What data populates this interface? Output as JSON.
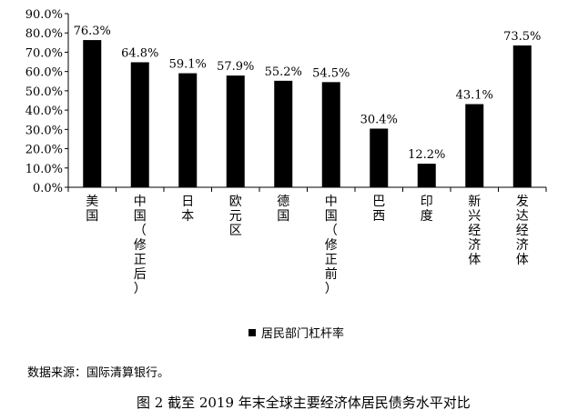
{
  "chart_data": {
    "type": "bar",
    "categories": [
      "美国",
      "中国（修正后）",
      "日本",
      "欧元区",
      "德国",
      "中国（修正前）",
      "巴西",
      "印度",
      "新兴经济体",
      "发达经济体"
    ],
    "category_labels": [
      "美国",
      "中国\n（\n修\n正\n后\n）",
      "日本",
      "欧元区",
      "德国",
      "中国\n（\n修\n正\n前\n）",
      "巴西",
      "印度",
      "新兴经济体",
      "发达经济体"
    ],
    "values": [
      76.3,
      64.8,
      59.1,
      57.9,
      55.2,
      54.5,
      30.4,
      12.2,
      43.1,
      73.5
    ],
    "data_labels": [
      "76.3%",
      "64.8%",
      "59.1%",
      "57.9%",
      "55.2%",
      "54.5%",
      "30.4%",
      "12.2%",
      "43.1%",
      "73.5%"
    ],
    "ylim": [
      0,
      90
    ],
    "yticks": [
      "0.0%",
      "10.0%",
      "20.0%",
      "30.0%",
      "40.0%",
      "50.0%",
      "60.0%",
      "70.0%",
      "80.0%",
      "90.0%"
    ],
    "grid": false,
    "legend": {
      "position": "bottom"
    },
    "series": [
      {
        "name": "居民部门杠杆率",
        "color": "#000000"
      }
    ]
  },
  "source_note": "数据来源：国际清算银行。",
  "caption": "图 2  截至 2019 年末全球主要经济体居民债务水平对比"
}
